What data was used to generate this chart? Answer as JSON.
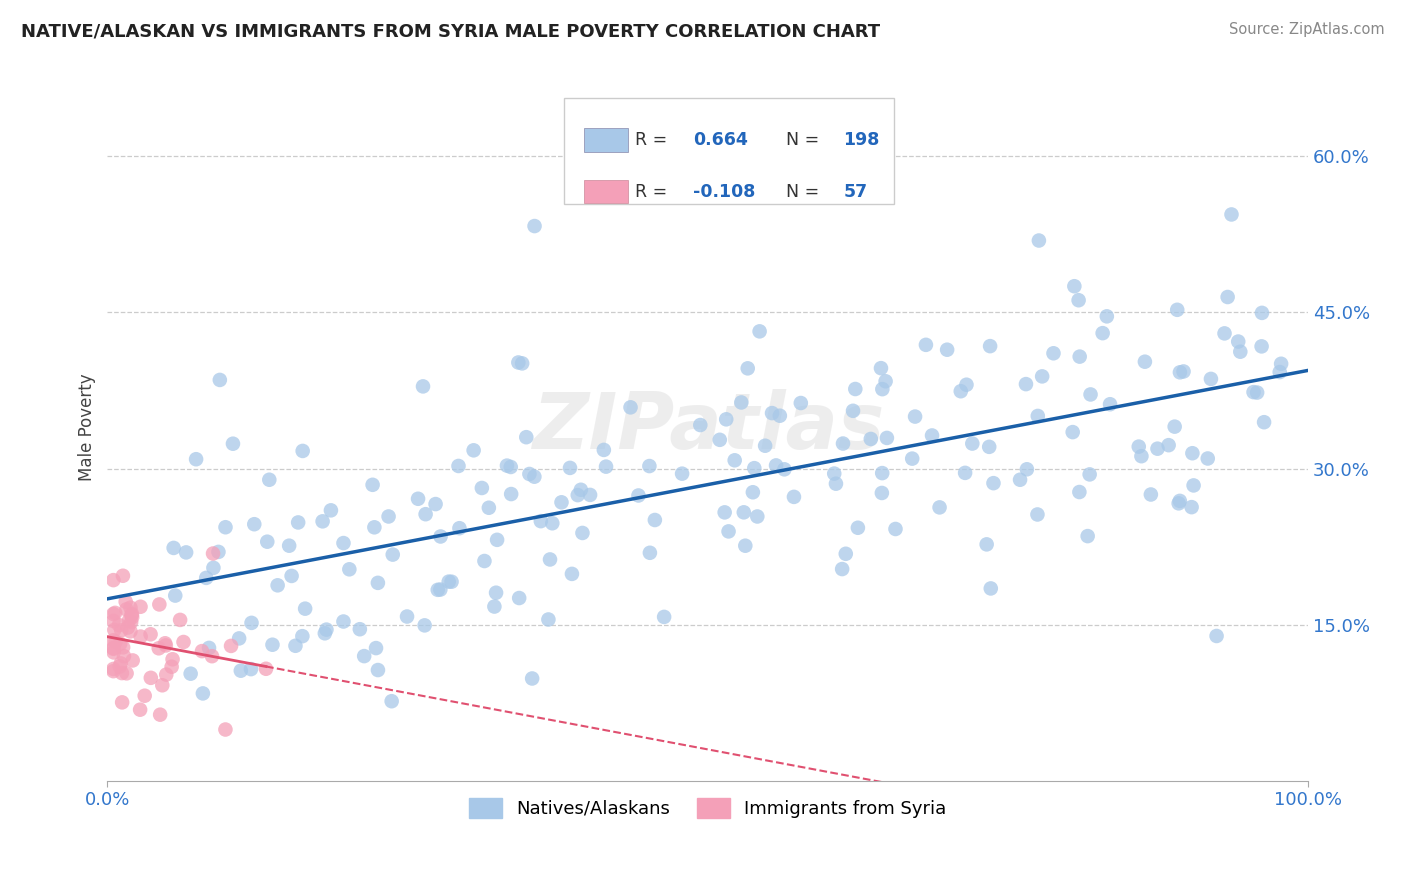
{
  "title": "NATIVE/ALASKAN VS IMMIGRANTS FROM SYRIA MALE POVERTY CORRELATION CHART",
  "source": "Source: ZipAtlas.com",
  "ylabel": "Male Poverty",
  "ytick_values": [
    0.15,
    0.3,
    0.45,
    0.6
  ],
  "ytick_labels": [
    "15.0%",
    "30.0%",
    "45.0%",
    "60.0%"
  ],
  "xlim": [
    0.0,
    1.0
  ],
  "ylim": [
    0.0,
    0.68
  ],
  "legend1_label": "Natives/Alaskans",
  "legend2_label": "Immigrants from Syria",
  "R1": 0.664,
  "N1": 198,
  "R2": -0.108,
  "N2": 57,
  "blue_color": "#A8C8E8",
  "pink_color": "#F4A0B8",
  "blue_line_color": "#1A5FA8",
  "pink_line_color": "#E05070",
  "background_color": "#FFFFFF"
}
